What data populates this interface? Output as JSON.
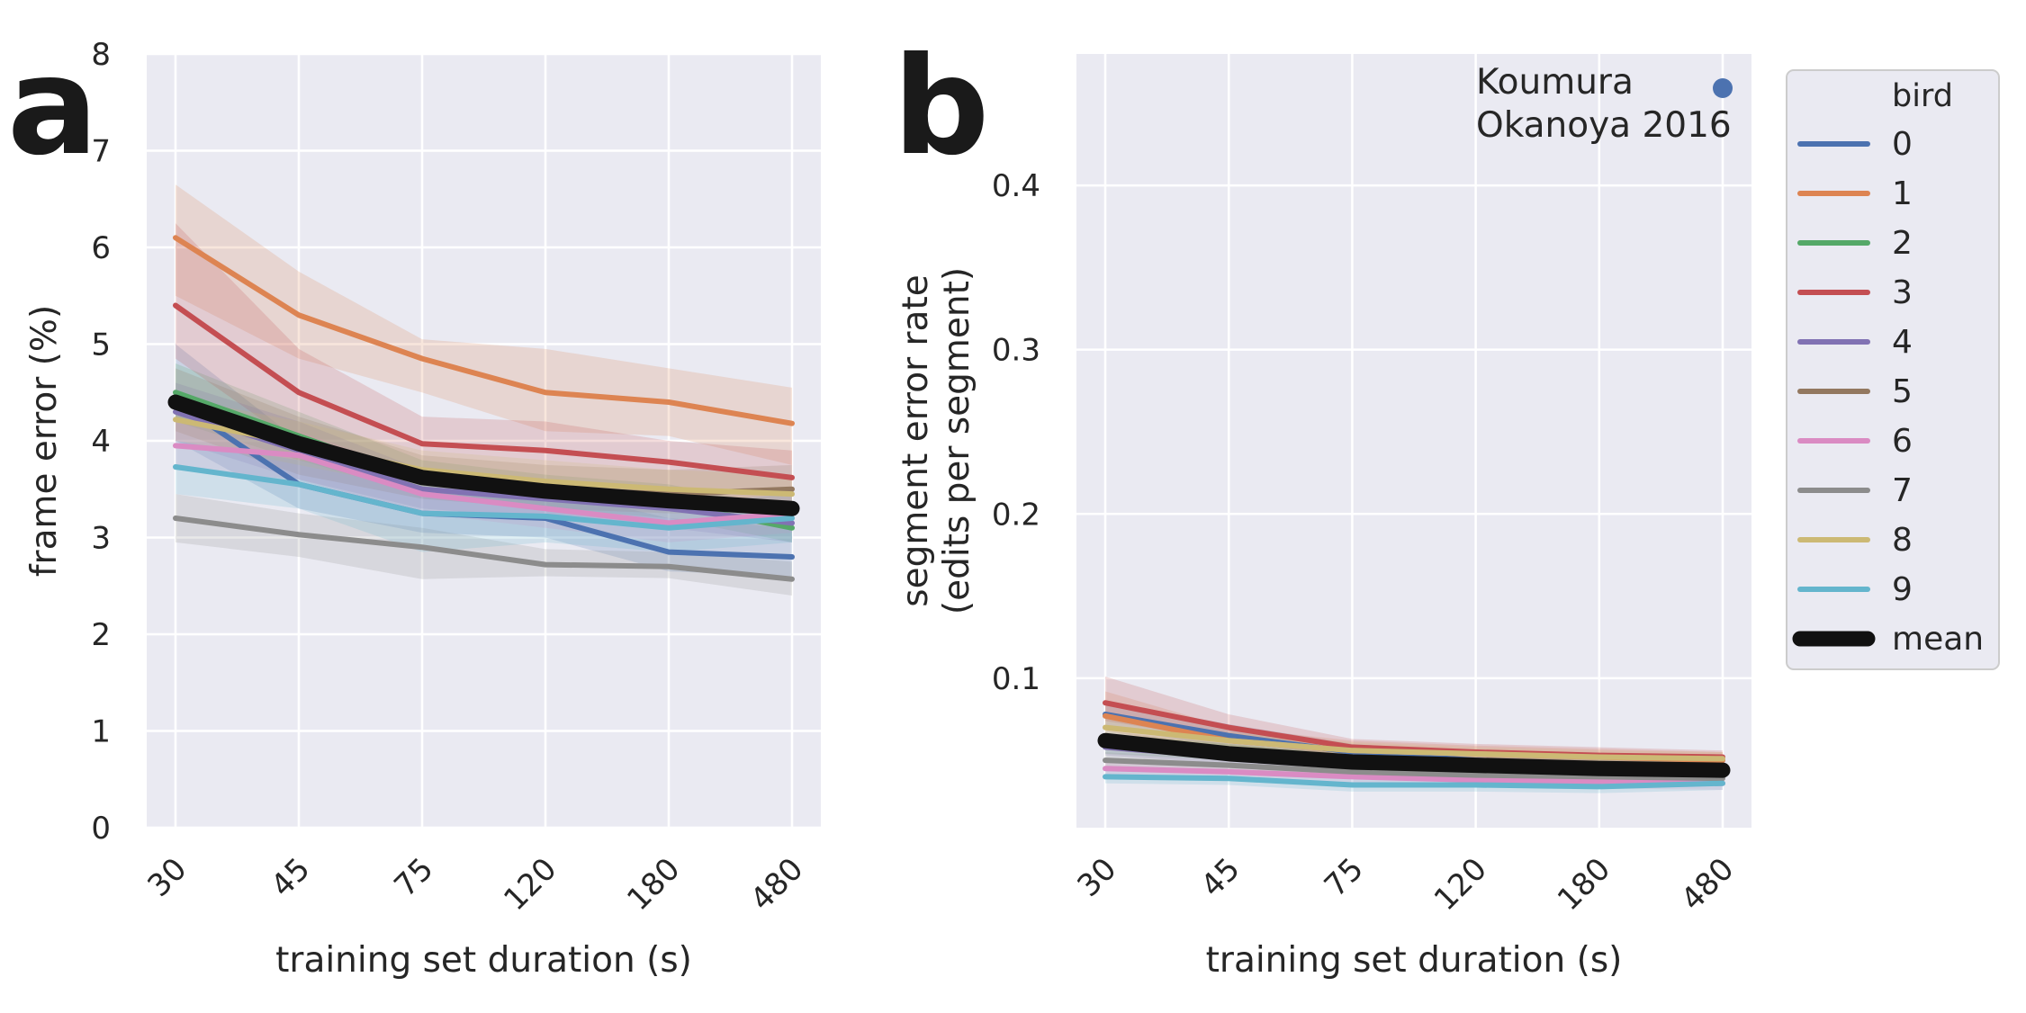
{
  "figure": {
    "panel_a_letter": "a",
    "panel_b_letter": "b"
  },
  "colors": {
    "background": "#EAEAF2",
    "grid": "#FFFFFF",
    "text": "#262626",
    "mean": "#111111",
    "bird": [
      "#4C72B0",
      "#DD8452",
      "#55A868",
      "#C44E52",
      "#8172B3",
      "#937860",
      "#DA8BC3",
      "#8C8C8C",
      "#CCB974",
      "#64B5CD"
    ]
  },
  "legend": {
    "title": "bird",
    "placement": "outside-right",
    "labels": [
      "0",
      "1",
      "2",
      "3",
      "4",
      "5",
      "6",
      "7",
      "8",
      "9",
      "mean"
    ]
  },
  "chart_data": [
    {
      "type": "line",
      "panel": "a",
      "xlabel": "training set duration (s)",
      "ylabel": "frame error (%)",
      "categories": [
        "30",
        "45",
        "75",
        "120",
        "180",
        "480"
      ],
      "ylim": [
        0,
        8
      ],
      "yticks": [
        "0",
        "1",
        "2",
        "3",
        "4",
        "5",
        "6",
        "7",
        "8"
      ],
      "grid": true,
      "series": [
        {
          "name": "0",
          "values": [
            4.4,
            3.55,
            3.25,
            3.2,
            2.85,
            2.8
          ],
          "lower": [
            4.0,
            3.3,
            3.05,
            3.0,
            2.65,
            2.6
          ],
          "upper": [
            5.0,
            4.0,
            3.5,
            3.5,
            3.2,
            3.1
          ]
        },
        {
          "name": "1",
          "values": [
            6.1,
            5.3,
            4.85,
            4.5,
            4.4,
            4.18
          ],
          "lower": [
            5.5,
            4.85,
            4.5,
            4.1,
            4.05,
            3.75
          ],
          "upper": [
            6.65,
            5.75,
            5.05,
            4.95,
            4.75,
            4.55
          ]
        },
        {
          "name": "2",
          "values": [
            4.5,
            4.05,
            3.6,
            3.45,
            3.35,
            3.1
          ],
          "lower": [
            4.2,
            3.8,
            3.45,
            3.3,
            3.2,
            2.95
          ],
          "upper": [
            4.8,
            4.3,
            3.8,
            3.65,
            3.55,
            3.3
          ]
        },
        {
          "name": "3",
          "values": [
            5.4,
            4.5,
            3.97,
            3.9,
            3.78,
            3.62
          ],
          "lower": [
            4.85,
            3.95,
            3.6,
            3.55,
            3.45,
            3.35
          ],
          "upper": [
            6.25,
            4.95,
            4.25,
            4.2,
            4.0,
            3.9
          ]
        },
        {
          "name": "4",
          "values": [
            4.3,
            3.9,
            3.5,
            3.4,
            3.3,
            3.15
          ],
          "lower": [
            4.0,
            3.6,
            3.3,
            3.2,
            3.1,
            2.95
          ],
          "upper": [
            4.6,
            4.2,
            3.7,
            3.6,
            3.5,
            3.35
          ]
        },
        {
          "name": "5",
          "values": [
            4.4,
            3.95,
            3.6,
            3.5,
            3.45,
            3.5
          ],
          "lower": [
            4.1,
            3.65,
            3.4,
            3.3,
            3.25,
            3.25
          ],
          "upper": [
            4.75,
            4.25,
            3.85,
            3.75,
            3.7,
            3.75
          ]
        },
        {
          "name": "6",
          "values": [
            3.95,
            3.85,
            3.45,
            3.3,
            3.15,
            3.25
          ],
          "lower": [
            3.7,
            3.6,
            3.25,
            3.1,
            2.95,
            3.05
          ],
          "upper": [
            4.2,
            4.1,
            3.65,
            3.5,
            3.35,
            3.45
          ]
        },
        {
          "name": "7",
          "values": [
            3.2,
            3.03,
            2.9,
            2.72,
            2.7,
            2.57
          ],
          "lower": [
            2.95,
            2.8,
            2.57,
            2.6,
            2.58,
            2.4
          ],
          "upper": [
            3.45,
            3.25,
            3.1,
            2.88,
            2.85,
            2.75
          ]
        },
        {
          "name": "8",
          "values": [
            4.22,
            3.97,
            3.7,
            3.58,
            3.5,
            3.45
          ],
          "lower": [
            4.0,
            3.75,
            3.5,
            3.4,
            3.3,
            3.25
          ],
          "upper": [
            4.45,
            4.2,
            3.9,
            3.8,
            3.7,
            3.65
          ]
        },
        {
          "name": "9",
          "values": [
            3.73,
            3.55,
            3.25,
            3.22,
            3.1,
            3.2
          ],
          "lower": [
            3.45,
            3.3,
            2.85,
            2.95,
            2.85,
            2.95
          ],
          "upper": [
            4.0,
            3.8,
            3.6,
            3.5,
            3.35,
            3.45
          ]
        }
      ],
      "mean": {
        "name": "mean",
        "values": [
          4.4,
          3.97,
          3.62,
          3.48,
          3.38,
          3.3
        ]
      }
    },
    {
      "type": "line",
      "panel": "b",
      "xlabel": "training set duration (s)",
      "ylabel": [
        "segment error rate",
        "(edits per segment)"
      ],
      "categories": [
        "30",
        "45",
        "75",
        "120",
        "180",
        "480"
      ],
      "ylim": [
        0.009,
        0.48
      ],
      "yticks": [
        "0.1",
        "0.2",
        "0.3",
        "0.4"
      ],
      "ytick_values": [
        0.1,
        0.2,
        0.3,
        0.4
      ],
      "grid": true,
      "reference": {
        "label": [
          "Koumura",
          "Okanoya 2016"
        ],
        "type": "point",
        "color": "#4C72B0"
      },
      "series": [
        {
          "name": "0",
          "values": [
            0.078,
            0.065,
            0.055,
            0.05,
            0.047,
            0.045
          ],
          "lower": [
            0.07,
            0.058,
            0.05,
            0.045,
            0.043,
            0.041
          ],
          "upper": [
            0.086,
            0.072,
            0.06,
            0.055,
            0.052,
            0.05
          ]
        },
        {
          "name": "1",
          "values": [
            0.077,
            0.062,
            0.056,
            0.054,
            0.052,
            0.05
          ],
          "lower": [
            0.068,
            0.055,
            0.05,
            0.049,
            0.047,
            0.045
          ],
          "upper": [
            0.092,
            0.07,
            0.062,
            0.059,
            0.057,
            0.055
          ]
        },
        {
          "name": "2",
          "values": [
            0.06,
            0.055,
            0.05,
            0.048,
            0.046,
            0.045
          ],
          "lower": [
            0.054,
            0.05,
            0.046,
            0.044,
            0.042,
            0.041
          ],
          "upper": [
            0.066,
            0.06,
            0.054,
            0.052,
            0.05,
            0.049
          ]
        },
        {
          "name": "3",
          "values": [
            0.085,
            0.07,
            0.058,
            0.055,
            0.053,
            0.052
          ],
          "lower": [
            0.074,
            0.062,
            0.052,
            0.05,
            0.048,
            0.047
          ],
          "upper": [
            0.101,
            0.078,
            0.063,
            0.06,
            0.058,
            0.056
          ]
        },
        {
          "name": "4",
          "values": [
            0.058,
            0.052,
            0.047,
            0.045,
            0.044,
            0.043
          ],
          "lower": [
            0.053,
            0.048,
            0.043,
            0.041,
            0.04,
            0.039
          ],
          "upper": [
            0.063,
            0.056,
            0.051,
            0.049,
            0.048,
            0.047
          ]
        },
        {
          "name": "5",
          "values": [
            0.062,
            0.055,
            0.05,
            0.048,
            0.047,
            0.046
          ],
          "lower": [
            0.056,
            0.05,
            0.046,
            0.044,
            0.043,
            0.042
          ],
          "upper": [
            0.068,
            0.06,
            0.054,
            0.052,
            0.051,
            0.05
          ]
        },
        {
          "name": "6",
          "values": [
            0.045,
            0.043,
            0.04,
            0.038,
            0.037,
            0.036
          ],
          "lower": [
            0.041,
            0.039,
            0.036,
            0.034,
            0.033,
            0.032
          ],
          "upper": [
            0.049,
            0.047,
            0.044,
            0.042,
            0.041,
            0.04
          ]
        },
        {
          "name": "7",
          "values": [
            0.05,
            0.047,
            0.043,
            0.041,
            0.04,
            0.039
          ],
          "lower": [
            0.045,
            0.043,
            0.039,
            0.037,
            0.036,
            0.035
          ],
          "upper": [
            0.055,
            0.051,
            0.047,
            0.045,
            0.044,
            0.043
          ]
        },
        {
          "name": "8",
          "values": [
            0.07,
            0.062,
            0.056,
            0.054,
            0.052,
            0.051
          ],
          "lower": [
            0.064,
            0.057,
            0.051,
            0.05,
            0.048,
            0.047
          ],
          "upper": [
            0.076,
            0.067,
            0.061,
            0.058,
            0.056,
            0.055
          ]
        },
        {
          "name": "9",
          "values": [
            0.04,
            0.039,
            0.035,
            0.035,
            0.034,
            0.036
          ],
          "lower": [
            0.036,
            0.035,
            0.031,
            0.031,
            0.03,
            0.032
          ],
          "upper": [
            0.044,
            0.043,
            0.039,
            0.039,
            0.038,
            0.04
          ]
        }
      ],
      "mean": {
        "name": "mean",
        "values": [
          0.062,
          0.054,
          0.049,
          0.047,
          0.045,
          0.044
        ]
      }
    }
  ]
}
